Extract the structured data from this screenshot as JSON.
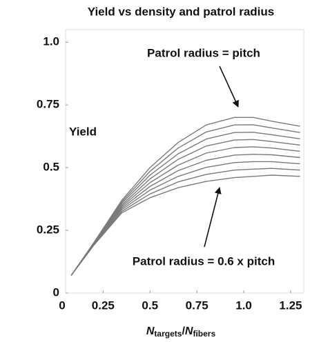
{
  "chart_data": {
    "type": "line",
    "title": "Yield vs density and patrol radius",
    "y_label": "Yield",
    "x_label": [
      "N",
      "targets",
      "/",
      "N",
      "fibers"
    ],
    "annotations": [
      "Patrol radius = pitch",
      "Patrol radius = 0.6 x pitch"
    ],
    "x": [
      0.08,
      0.2,
      0.35,
      0.5,
      0.65,
      0.8,
      0.95,
      1.05,
      1.15,
      1.3
    ],
    "series": [
      {
        "color": "#7a7a7a",
        "values": [
          0.07,
          0.19,
          0.32,
          0.38,
          0.42,
          0.445,
          0.46,
          0.465,
          0.47,
          0.465
        ]
      },
      {
        "color": "#7a7a7a",
        "values": [
          0.07,
          0.191,
          0.326,
          0.395,
          0.443,
          0.473,
          0.49,
          0.494,
          0.497,
          0.49
        ]
      },
      {
        "color": "#7a7a7a",
        "values": [
          0.07,
          0.193,
          0.333,
          0.41,
          0.465,
          0.501,
          0.52,
          0.524,
          0.524,
          0.515
        ]
      },
      {
        "color": "#7a7a7a",
        "values": [
          0.07,
          0.194,
          0.339,
          0.425,
          0.488,
          0.529,
          0.55,
          0.553,
          0.551,
          0.54
        ]
      },
      {
        "color": "#7a7a7a",
        "values": [
          0.07,
          0.195,
          0.345,
          0.44,
          0.51,
          0.558,
          0.58,
          0.583,
          0.578,
          0.565
        ]
      },
      {
        "color": "#7a7a7a",
        "values": [
          0.07,
          0.196,
          0.351,
          0.455,
          0.533,
          0.586,
          0.61,
          0.612,
          0.604,
          0.59
        ]
      },
      {
        "color": "#7a7a7a",
        "values": [
          0.07,
          0.198,
          0.358,
          0.47,
          0.555,
          0.614,
          0.64,
          0.641,
          0.631,
          0.615
        ]
      },
      {
        "color": "#7a7a7a",
        "values": [
          0.07,
          0.199,
          0.364,
          0.485,
          0.578,
          0.642,
          0.67,
          0.671,
          0.658,
          0.64
        ]
      },
      {
        "color": "#7a7a7a",
        "values": [
          0.07,
          0.2,
          0.37,
          0.5,
          0.6,
          0.67,
          0.7,
          0.7,
          0.685,
          0.665
        ]
      }
    ],
    "xlim": [
      0.05,
      1.32
    ],
    "ylim": [
      0,
      1.05
    ],
    "xticks": [
      0,
      0.25,
      0.5,
      0.75,
      {
        "value": 1,
        "label": "1.0"
      },
      1.25
    ],
    "yticks": [
      0,
      0.25,
      0.5,
      0.75,
      {
        "value": 1,
        "label": "1.0"
      }
    ]
  }
}
